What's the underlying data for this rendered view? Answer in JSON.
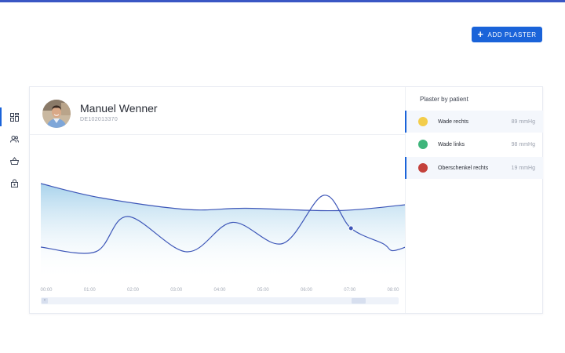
{
  "toolbar": {
    "add_label": "ADD PLASTER"
  },
  "nav": {
    "items": [
      {
        "name": "dashboard",
        "icon": "dashboard-icon",
        "active": true
      },
      {
        "name": "patients",
        "icon": "users-icon",
        "active": false
      },
      {
        "name": "shop",
        "icon": "basket-icon",
        "active": false
      },
      {
        "name": "security",
        "icon": "lock-icon",
        "active": false
      }
    ]
  },
  "patient": {
    "name": "Manuel Wenner",
    "id": "DE102013370"
  },
  "panel": {
    "title": "Plaster by patient",
    "items": [
      {
        "label": "Wade rechts",
        "value": "89 mmHg",
        "color": "#f3cd4b",
        "selected": true
      },
      {
        "label": "Wade links",
        "value": "98 mmHg",
        "color": "#3fb57b",
        "selected": false
      },
      {
        "label": "Oberschenkel rechts",
        "value": "19 mmHg",
        "color": "#c4413b",
        "selected": true
      }
    ]
  },
  "chart_data": {
    "type": "line",
    "x_labels": [
      "00:00",
      "01:00",
      "02:00",
      "03:00",
      "04:00",
      "05:00",
      "06:00",
      "07:00",
      "08:00"
    ],
    "series": [
      {
        "x": [
          0,
          1.3,
          3.2,
          4.5,
          6.5,
          8
        ],
        "y": [
          0.82,
          0.7,
          0.6,
          0.61,
          0.59,
          0.64
        ],
        "fill": true
      },
      {
        "x": [
          0,
          1.2,
          1.9,
          3.2,
          4.2,
          5.3,
          6.2,
          6.8,
          7.5,
          7.7,
          8
        ],
        "y": [
          0.28,
          0.24,
          0.54,
          0.24,
          0.49,
          0.31,
          0.72,
          0.44,
          0.31,
          0.25,
          0.28
        ],
        "fill": false
      }
    ],
    "marker": {
      "series": 1,
      "x": 6.8,
      "y": 0.44
    },
    "colors": {
      "line": "#3d56b8",
      "area_top": "#a9d3ec",
      "area_bottom": "#ffffff"
    },
    "grid": false
  }
}
